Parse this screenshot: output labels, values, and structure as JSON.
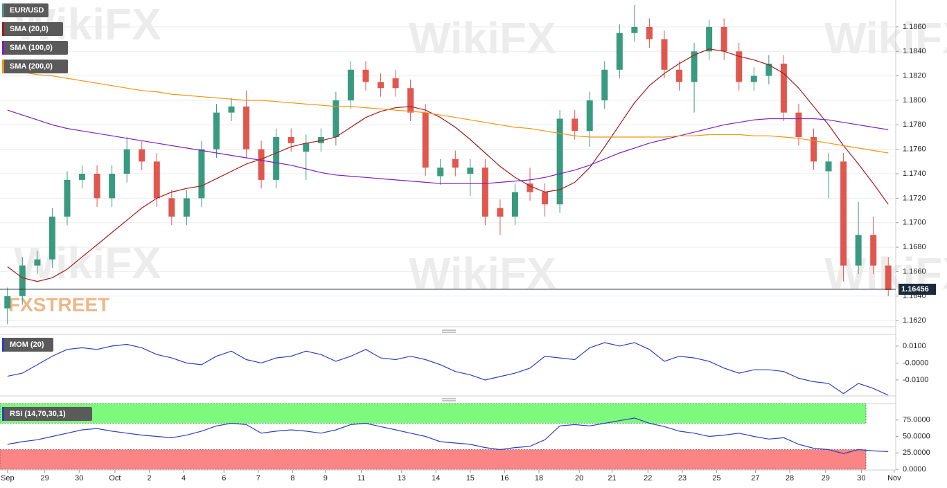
{
  "chart_data": [
    {
      "type": "candlestick",
      "xlim": [
        0,
        60
      ],
      "ylim": [
        1.1615,
        1.1882
      ],
      "yticks": [
        {
          "value": 1.162,
          "label": "1.1620"
        },
        {
          "value": 1.164,
          "label": "1.1640"
        },
        {
          "value": 1.166,
          "label": "1.1660"
        },
        {
          "value": 1.168,
          "label": "1.1680"
        },
        {
          "value": 1.17,
          "label": "1.1700"
        },
        {
          "value": 1.172,
          "label": "1.1720"
        },
        {
          "value": 1.174,
          "label": "1.1740"
        },
        {
          "value": 1.176,
          "label": "1.1760"
        },
        {
          "value": 1.178,
          "label": "1.1780"
        },
        {
          "value": 1.18,
          "label": "1.1800"
        },
        {
          "value": 1.182,
          "label": "1.1820"
        },
        {
          "value": 1.184,
          "label": "1.1840"
        },
        {
          "value": 1.186,
          "label": "1.1860"
        }
      ],
      "grid": true,
      "last_price": 1.16456,
      "series": [
        {
          "name": "EUR/USD",
          "color_up": "#3a9a80",
          "color_down": "#e0574f",
          "open": [
            1.163,
            1.164,
            1.1665,
            1.167,
            1.1705,
            1.1735,
            1.174,
            1.172,
            1.174,
            1.176,
            1.175,
            1.172,
            1.1705,
            1.172,
            1.176,
            1.179,
            1.1795,
            1.176,
            1.1735,
            1.177,
            1.1758,
            1.1765,
            1.177,
            1.18,
            1.1825,
            1.1815,
            1.1818,
            1.181,
            1.179,
            1.1738,
            1.1752,
            1.174,
            1.1745,
            1.1712,
            1.1705,
            1.1732,
            1.1725,
            1.1715,
            1.1785,
            1.1775,
            1.18,
            1.1825,
            1.1855,
            1.186,
            1.185,
            1.1825,
            1.1815,
            1.184,
            1.186,
            1.184,
            1.1815,
            1.182,
            1.183,
            1.179,
            1.177,
            1.1742,
            1.175,
            1.1665,
            1.169,
            1.1665
          ],
          "high": [
            1.1647,
            1.1672,
            1.1677,
            1.1712,
            1.1742,
            1.1747,
            1.1747,
            1.1747,
            1.177,
            1.1767,
            1.1757,
            1.1727,
            1.1727,
            1.1767,
            1.1797,
            1.1802,
            1.1808,
            1.1767,
            1.1777,
            1.1777,
            1.1772,
            1.1777,
            1.1807,
            1.1832,
            1.1832,
            1.1822,
            1.1825,
            1.1817,
            1.1797,
            1.1752,
            1.1759,
            1.1752,
            1.1752,
            1.1719,
            1.1732,
            1.1745,
            1.1732,
            1.1792,
            1.1792,
            1.1807,
            1.1832,
            1.1862,
            1.1878,
            1.1867,
            1.1857,
            1.1832,
            1.1847,
            1.1866,
            1.1867,
            1.1847,
            1.1827,
            1.1837,
            1.1837,
            1.1797,
            1.1777,
            1.1757,
            1.1757,
            1.1717,
            1.1705,
            1.1672
          ],
          "low": [
            1.1617,
            1.1633,
            1.1658,
            1.1663,
            1.1698,
            1.1728,
            1.1713,
            1.1713,
            1.1733,
            1.1743,
            1.1713,
            1.1698,
            1.1698,
            1.1713,
            1.1753,
            1.1783,
            1.1753,
            1.1728,
            1.1728,
            1.1758,
            1.1735,
            1.1758,
            1.1763,
            1.1793,
            1.1808,
            1.1803,
            1.1803,
            1.1783,
            1.1738,
            1.1731,
            1.1738,
            1.1722,
            1.1698,
            1.169,
            1.1698,
            1.1718,
            1.1705,
            1.1708,
            1.1768,
            1.1762,
            1.1793,
            1.1818,
            1.1848,
            1.1843,
            1.1818,
            1.1808,
            1.179,
            1.1833,
            1.1833,
            1.1808,
            1.1808,
            1.1813,
            1.1783,
            1.1763,
            1.1743,
            1.172,
            1.1652,
            1.1658,
            1.1658,
            1.164
          ],
          "close": [
            1.164,
            1.1665,
            1.167,
            1.1705,
            1.1735,
            1.174,
            1.172,
            1.174,
            1.176,
            1.175,
            1.172,
            1.1705,
            1.172,
            1.176,
            1.179,
            1.1795,
            1.176,
            1.1735,
            1.177,
            1.1765,
            1.1765,
            1.177,
            1.18,
            1.1825,
            1.1815,
            1.181,
            1.181,
            1.179,
            1.1745,
            1.1745,
            1.1745,
            1.1745,
            1.1705,
            1.1705,
            1.1725,
            1.1725,
            1.1715,
            1.1785,
            1.1775,
            1.18,
            1.1825,
            1.1855,
            1.186,
            1.185,
            1.1825,
            1.1815,
            1.184,
            1.186,
            1.184,
            1.1815,
            1.182,
            1.183,
            1.179,
            1.177,
            1.175,
            1.175,
            1.1665,
            1.169,
            1.1665,
            1.1645
          ]
        },
        {
          "name": "SMA (20,0)",
          "color": "#a31b1b",
          "values": [
            1.1664,
            1.1655,
            1.1652,
            1.1655,
            1.1662,
            1.1672,
            1.1682,
            1.1692,
            1.1702,
            1.1712,
            1.172,
            1.1725,
            1.1728,
            1.173,
            1.1736,
            1.1742,
            1.1748,
            1.1752,
            1.1757,
            1.1762,
            1.1765,
            1.1767,
            1.177,
            1.1778,
            1.1786,
            1.1791,
            1.1794,
            1.1795,
            1.1792,
            1.1786,
            1.1778,
            1.1768,
            1.1757,
            1.1746,
            1.1737,
            1.173,
            1.1725,
            1.1727,
            1.1733,
            1.1745,
            1.1762,
            1.178,
            1.1798,
            1.1812,
            1.1822,
            1.183,
            1.1837,
            1.1842,
            1.184,
            1.1836,
            1.1833,
            1.1829,
            1.1822,
            1.181,
            1.1795,
            1.178,
            1.1763,
            1.1748,
            1.1732,
            1.1715
          ]
        },
        {
          "name": "SMA (100,0)",
          "color": "#7a1fc4",
          "values": [
            1.1792,
            1.1788,
            1.1784,
            1.178,
            1.1777,
            1.1775,
            1.1773,
            1.1771,
            1.1769,
            1.1767,
            1.1765,
            1.1763,
            1.1761,
            1.1759,
            1.1757,
            1.1755,
            1.1753,
            1.1751,
            1.1749,
            1.1747,
            1.1744,
            1.1741,
            1.1739,
            1.1738,
            1.1737,
            1.1736,
            1.1735,
            1.1734,
            1.1733,
            1.1732,
            1.1732,
            1.1732,
            1.1732,
            1.1733,
            1.1734,
            1.1735,
            1.1737,
            1.174,
            1.1743,
            1.1747,
            1.1752,
            1.1757,
            1.1761,
            1.1765,
            1.1768,
            1.1771,
            1.1774,
            1.1777,
            1.178,
            1.1782,
            1.1784,
            1.1785,
            1.1785,
            1.1785,
            1.1785,
            1.1784,
            1.1782,
            1.178,
            1.1778,
            1.1776
          ]
        },
        {
          "name": "SMA (200,0)",
          "color": "#f0960a",
          "values": [
            1.1824,
            1.1823,
            1.1821,
            1.182,
            1.1818,
            1.1816,
            1.1814,
            1.1812,
            1.181,
            1.1808,
            1.1807,
            1.1805,
            1.1804,
            1.1803,
            1.1802,
            1.1801,
            1.18,
            1.18,
            1.1799,
            1.1798,
            1.1797,
            1.1796,
            1.1795,
            1.1795,
            1.1794,
            1.1793,
            1.1792,
            1.1791,
            1.179,
            1.1788,
            1.1786,
            1.1784,
            1.1782,
            1.178,
            1.1778,
            1.1777,
            1.1775,
            1.1773,
            1.1771,
            1.177,
            1.177,
            1.177,
            1.177,
            1.177,
            1.177,
            1.1771,
            1.1771,
            1.1772,
            1.1772,
            1.1772,
            1.1771,
            1.1771,
            1.177,
            1.1769,
            1.1767,
            1.1765,
            1.1763,
            1.1761,
            1.1759,
            1.1757
          ]
        }
      ]
    },
    {
      "type": "line",
      "xlim": [
        0,
        60
      ],
      "ylim": [
        -0.0194,
        0.0169
      ],
      "yticks": [
        {
          "value": -0.01,
          "label": "-0.0100"
        },
        {
          "value": 0,
          "label": "-0.0000"
        },
        {
          "value": 0.01,
          "label": "0.0100"
        }
      ],
      "series": [
        {
          "name": "MOM (20)",
          "color": "#2a3fc4",
          "values": [
            -0.0078,
            -0.006,
            -0.001,
            0.004,
            0.008,
            0.009,
            0.008,
            0.01,
            0.011,
            0.009,
            0.005,
            0.003,
            0.0,
            -0.001,
            0.004,
            0.007,
            0.002,
            0.0,
            0.003,
            0.004,
            0.007,
            0.005,
            0.001,
            0.004,
            0.008,
            0.003,
            0.002,
            0.004,
            0.002,
            -0.001,
            -0.005,
            -0.007,
            -0.01,
            -0.008,
            -0.006,
            -0.003,
            0.004,
            0.003,
            0.002,
            0.009,
            0.012,
            0.01,
            0.012,
            0.008,
            0.001,
            0.004,
            0.003,
            0.001,
            -0.003,
            -0.006,
            -0.004,
            -0.004,
            -0.005,
            -0.009,
            -0.011,
            -0.012,
            -0.018,
            -0.012,
            -0.015,
            -0.019
          ]
        }
      ]
    },
    {
      "type": "line",
      "xlim": [
        0,
        60
      ],
      "ylim": [
        0,
        100
      ],
      "yticks": [
        {
          "value": 0,
          "label": "0.0000"
        },
        {
          "value": 25,
          "label": "25.0000"
        },
        {
          "value": 50,
          "label": "50.0000"
        },
        {
          "value": 75,
          "label": "75.0000"
        }
      ],
      "zones": [
        {
          "from": 70,
          "to": 100,
          "color": "#7dfa7d"
        },
        {
          "from": 0,
          "to": 30,
          "color": "#fb8585"
        }
      ],
      "series": [
        {
          "name": "RSI (14,70,30,1)",
          "color": "#2a3fc4",
          "values": [
            38,
            42,
            45,
            50,
            55,
            60,
            62,
            58,
            55,
            52,
            50,
            48,
            52,
            58,
            66,
            70,
            68,
            55,
            58,
            60,
            58,
            55,
            60,
            68,
            70,
            65,
            60,
            55,
            50,
            42,
            40,
            38,
            33,
            30,
            33,
            35,
            45,
            66,
            68,
            66,
            70,
            74,
            78,
            70,
            65,
            58,
            55,
            50,
            52,
            55,
            50,
            46,
            48,
            38,
            32,
            30,
            24,
            30,
            28,
            27
          ]
        }
      ],
      "xticks": [
        {
          "value": 0.5,
          "label": "Sep"
        },
        {
          "value": 3.0,
          "label": "29"
        },
        {
          "value": 5.3,
          "label": "30"
        },
        {
          "value": 7.7,
          "label": "Oct"
        },
        {
          "value": 10.0,
          "label": "2"
        },
        {
          "value": 12.3,
          "label": "4"
        },
        {
          "value": 15.0,
          "label": "6"
        },
        {
          "value": 17.3,
          "label": "7"
        },
        {
          "value": 19.6,
          "label": "8"
        },
        {
          "value": 21.8,
          "label": "9"
        },
        {
          "value": 24.2,
          "label": "11"
        },
        {
          "value": 26.9,
          "label": "13"
        },
        {
          "value": 29.2,
          "label": "14"
        },
        {
          "value": 31.5,
          "label": "15"
        },
        {
          "value": 33.8,
          "label": "16"
        },
        {
          "value": 36.1,
          "label": "18"
        },
        {
          "value": 38.8,
          "label": "20"
        },
        {
          "value": 41.0,
          "label": "21"
        },
        {
          "value": 43.4,
          "label": "22"
        },
        {
          "value": 45.7,
          "label": "23"
        },
        {
          "value": 48.0,
          "label": "25"
        },
        {
          "value": 50.6,
          "label": "27"
        },
        {
          "value": 52.9,
          "label": "28"
        },
        {
          "value": 55.3,
          "label": "29"
        },
        {
          "value": 57.7,
          "label": "30"
        },
        {
          "value": 59.9,
          "label": "Nov"
        }
      ]
    }
  ],
  "watermark": "WikiFX",
  "logo": "FXSTREET"
}
